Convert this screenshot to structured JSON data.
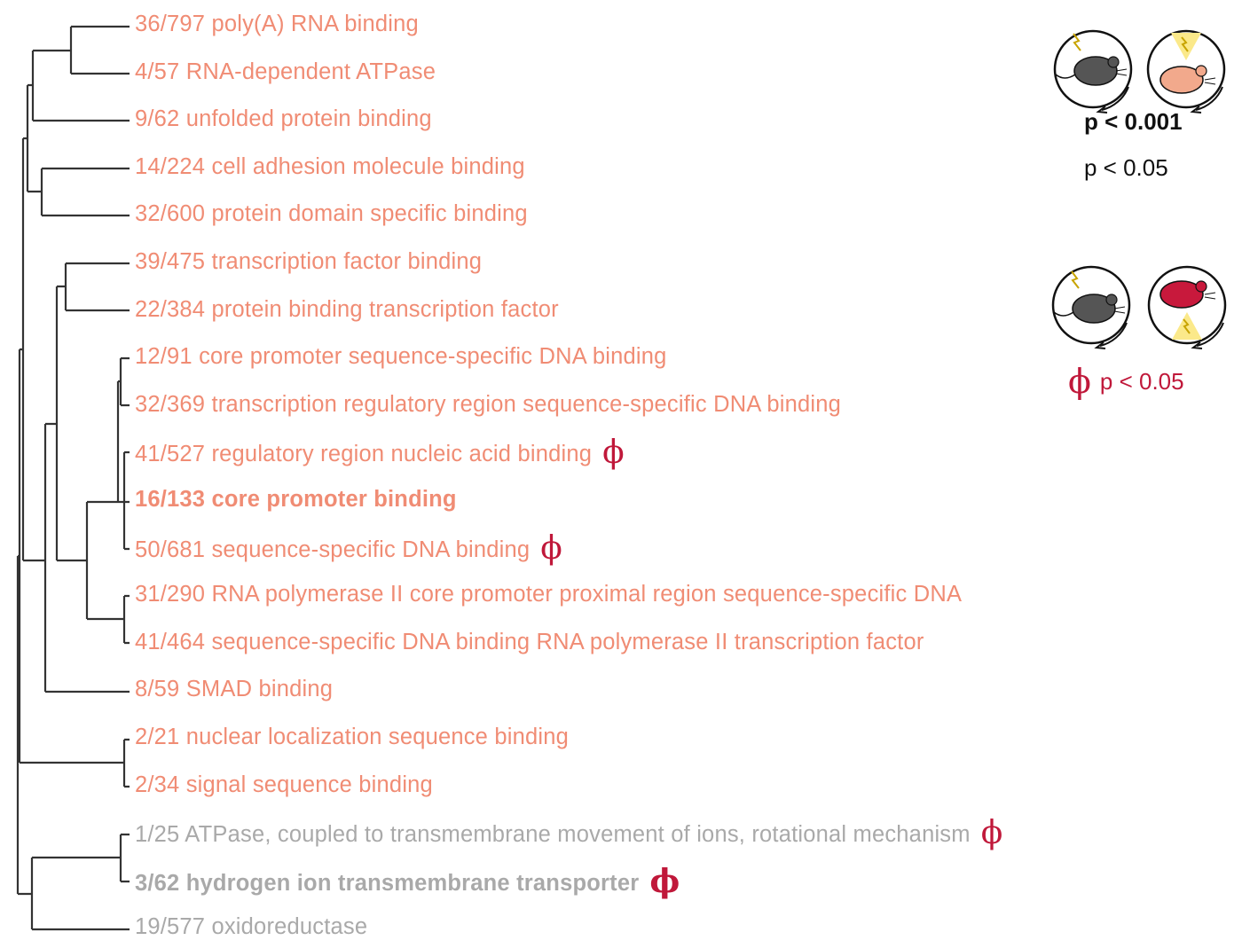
{
  "terms": [
    {
      "label": "36/797 poly(A) RNA binding",
      "significant": true,
      "bold": false,
      "phi": false
    },
    {
      "label": "4/57 RNA-dependent ATPase",
      "significant": true,
      "bold": false,
      "phi": false
    },
    {
      "label": "9/62 unfolded protein binding",
      "significant": true,
      "bold": false,
      "phi": false
    },
    {
      "label": "14/224 cell adhesion molecule binding",
      "significant": true,
      "bold": false,
      "phi": false
    },
    {
      "label": "32/600 protein domain specific binding",
      "significant": true,
      "bold": false,
      "phi": false
    },
    {
      "label": "39/475 transcription factor binding",
      "significant": true,
      "bold": false,
      "phi": false
    },
    {
      "label": "22/384 protein binding transcription factor",
      "significant": true,
      "bold": false,
      "phi": false
    },
    {
      "label": "12/91 core promoter sequence-specific DNA binding",
      "significant": true,
      "bold": false,
      "phi": false
    },
    {
      "label": "32/369 transcription regulatory region sequence-specific DNA binding",
      "significant": true,
      "bold": false,
      "phi": false
    },
    {
      "label": "41/527 regulatory region nucleic acid binding",
      "significant": true,
      "bold": false,
      "phi": true
    },
    {
      "label": "16/133 core promoter binding",
      "significant": true,
      "bold": true,
      "phi": false
    },
    {
      "label": "50/681 sequence-specific DNA binding",
      "significant": true,
      "bold": false,
      "phi": true
    },
    {
      "label": "31/290 RNA polymerase II core promoter proximal region sequence-specific DNA",
      "significant": true,
      "bold": false,
      "phi": false
    },
    {
      "label": "41/464 sequence-specific DNA binding RNA polymerase II transcription factor",
      "significant": true,
      "bold": false,
      "phi": false
    },
    {
      "label": "8/59 SMAD binding",
      "significant": true,
      "bold": false,
      "phi": false
    },
    {
      "label": "2/21 nuclear localization sequence binding",
      "significant": true,
      "bold": false,
      "phi": false
    },
    {
      "label": "2/34 signal sequence binding",
      "significant": true,
      "bold": false,
      "phi": false
    },
    {
      "label": "1/25 ATPase, coupled to transmembrane movement of ions, rotational mechanism",
      "significant": false,
      "bold": false,
      "phi": true
    },
    {
      "label": "3/62 hydrogen ion transmembrane transporter",
      "significant": false,
      "bold": true,
      "phi": true
    },
    {
      "label": "19/577 oxidoreductase",
      "significant": false,
      "bold": false,
      "phi": false
    }
  ],
  "phi_symbol": "ϕ",
  "legend": {
    "bold_p": "p < 0.001",
    "regular_p": "p < 0.05",
    "phi_p": "p < 0.05"
  },
  "colors": {
    "significant": "#f08c74",
    "nonsignificant": "#a9a9a9",
    "phi": "#c0183a",
    "tree": "#333333",
    "mouse_dark": "#555555",
    "mouse_peach": "#f2a98c",
    "mouse_red": "#c8193c",
    "light_cone": "#fbe98a"
  },
  "icons": {
    "tree": "dendrogram",
    "legend_top_left": "mouse-dark-light-on-icon",
    "legend_top_right": "mouse-peach-light-cone-icon",
    "legend_bottom_left": "mouse-dark-light-on-icon",
    "legend_bottom_right": "mouse-red-light-cone-icon"
  }
}
